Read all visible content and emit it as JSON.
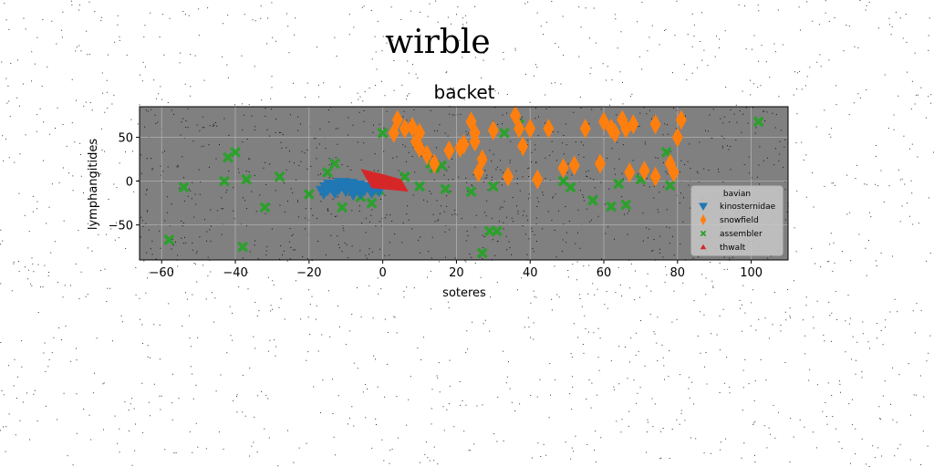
{
  "figure": {
    "suptitle": "wirble",
    "background": "#ffffff"
  },
  "chart_data": {
    "type": "scatter",
    "title": "backet",
    "xlabel": "soteres",
    "ylabel": "lymphangitides",
    "xlim": [
      -66,
      110
    ],
    "ylim": [
      -90,
      85
    ],
    "xticks": [
      -60,
      -40,
      -20,
      0,
      20,
      40,
      60,
      80,
      100
    ],
    "yticks": [
      -50,
      0,
      50
    ],
    "grid": true,
    "axes_facecolor": "#808080",
    "legend": {
      "title": "bavian",
      "placement": "lower-right"
    },
    "series": [
      {
        "name": "kinosternidae",
        "marker": "triangle-down",
        "color": "#1f77b4",
        "points": [
          [
            -16,
            -12
          ],
          [
            -15,
            -8
          ],
          [
            -13,
            -11
          ],
          [
            -12,
            -7
          ],
          [
            -10,
            -9
          ],
          [
            -9,
            -4
          ],
          [
            -8,
            -13
          ],
          [
            -7,
            -6
          ],
          [
            -6,
            -12
          ],
          [
            -5,
            -8
          ],
          [
            -3,
            -11
          ],
          [
            -2,
            -5
          ],
          [
            -1,
            -9
          ],
          [
            -14,
            -5
          ],
          [
            -11,
            -3
          ]
        ]
      },
      {
        "name": "snowfield",
        "marker": "thin_diamond",
        "color": "#ff7f0e",
        "points": [
          [
            3,
            55
          ],
          [
            4,
            70
          ],
          [
            6,
            60
          ],
          [
            8,
            62
          ],
          [
            9,
            45
          ],
          [
            10,
            55
          ],
          [
            10,
            38
          ],
          [
            12,
            30
          ],
          [
            14,
            20
          ],
          [
            18,
            35
          ],
          [
            21,
            38
          ],
          [
            22,
            42
          ],
          [
            24,
            68
          ],
          [
            25,
            55
          ],
          [
            25,
            45
          ],
          [
            26,
            10
          ],
          [
            27,
            25
          ],
          [
            30,
            58
          ],
          [
            34,
            5
          ],
          [
            36,
            75
          ],
          [
            37,
            60
          ],
          [
            38,
            40
          ],
          [
            40,
            60
          ],
          [
            42,
            2
          ],
          [
            45,
            60
          ],
          [
            49,
            15
          ],
          [
            52,
            18
          ],
          [
            55,
            60
          ],
          [
            59,
            20
          ],
          [
            60,
            68
          ],
          [
            62,
            60
          ],
          [
            63,
            55
          ],
          [
            65,
            70
          ],
          [
            66,
            60
          ],
          [
            67,
            10
          ],
          [
            68,
            65
          ],
          [
            71,
            12
          ],
          [
            74,
            65
          ],
          [
            74,
            5
          ],
          [
            78,
            20
          ],
          [
            79,
            10
          ],
          [
            80,
            50
          ],
          [
            81,
            70
          ]
        ]
      },
      {
        "name": "assembler",
        "marker": "X",
        "color": "#2ca02c",
        "points": [
          [
            -58,
            -67
          ],
          [
            -54,
            -7
          ],
          [
            -43,
            0
          ],
          [
            -42,
            27
          ],
          [
            -40,
            33
          ],
          [
            -38,
            -75
          ],
          [
            -37,
            2
          ],
          [
            -32,
            -30
          ],
          [
            -28,
            5
          ],
          [
            -20,
            -15
          ],
          [
            -15,
            10
          ],
          [
            -13,
            20
          ],
          [
            -11,
            -30
          ],
          [
            -9,
            -5
          ],
          [
            -6,
            -18
          ],
          [
            -3,
            -25
          ],
          [
            -1,
            -10
          ],
          [
            0,
            55
          ],
          [
            2,
            -2
          ],
          [
            6,
            5
          ],
          [
            10,
            -6
          ],
          [
            13,
            20
          ],
          [
            14,
            15
          ],
          [
            16,
            18
          ],
          [
            17,
            -9
          ],
          [
            24,
            -12
          ],
          [
            27,
            -82
          ],
          [
            29,
            -57
          ],
          [
            30,
            -6
          ],
          [
            31,
            -57
          ],
          [
            33,
            55
          ],
          [
            37,
            65
          ],
          [
            49,
            0
          ],
          [
            51,
            -7
          ],
          [
            57,
            -22
          ],
          [
            62,
            -29
          ],
          [
            64,
            -3
          ],
          [
            66,
            -27
          ],
          [
            70,
            2
          ],
          [
            77,
            33
          ],
          [
            78,
            -5
          ],
          [
            102,
            68
          ]
        ]
      },
      {
        "name": "thwalt",
        "marker": "triangle-up",
        "color": "#d62728",
        "polygon": [
          [
            -6,
            14
          ],
          [
            -3,
            -8
          ],
          [
            7,
            -12
          ],
          [
            5,
            2
          ],
          [
            0,
            8
          ]
        ]
      }
    ]
  },
  "labels": {
    "legend_items": [
      "kinosternidae",
      "snowfield",
      "assembler",
      "thwalt"
    ]
  }
}
